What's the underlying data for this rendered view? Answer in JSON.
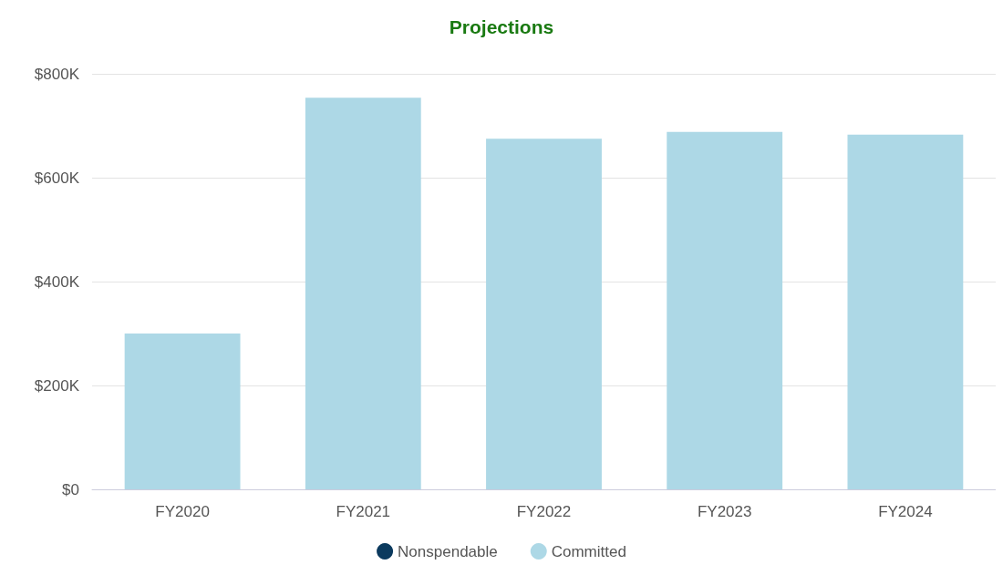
{
  "chart_data": {
    "type": "bar",
    "title": "Projections",
    "categories": [
      "FY2020",
      "FY2021",
      "FY2022",
      "FY2023",
      "FY2024"
    ],
    "series": [
      {
        "name": "Nonspendable",
        "color": "#0b3a5e",
        "values": [
          0,
          0,
          0,
          0,
          0
        ]
      },
      {
        "name": "Committed",
        "color": "#add8e6",
        "values": [
          300000,
          754000,
          675000,
          688000,
          683000
        ]
      }
    ],
    "stacked": true,
    "ylim": [
      0,
      800000
    ],
    "yticks": [
      {
        "value": 0,
        "label": "$0"
      },
      {
        "value": 200000,
        "label": "$200K"
      },
      {
        "value": 400000,
        "label": "$400K"
      },
      {
        "value": 600000,
        "label": "$600K"
      },
      {
        "value": 800000,
        "label": "$800K"
      }
    ],
    "grid": "y",
    "legend": "bottom"
  }
}
